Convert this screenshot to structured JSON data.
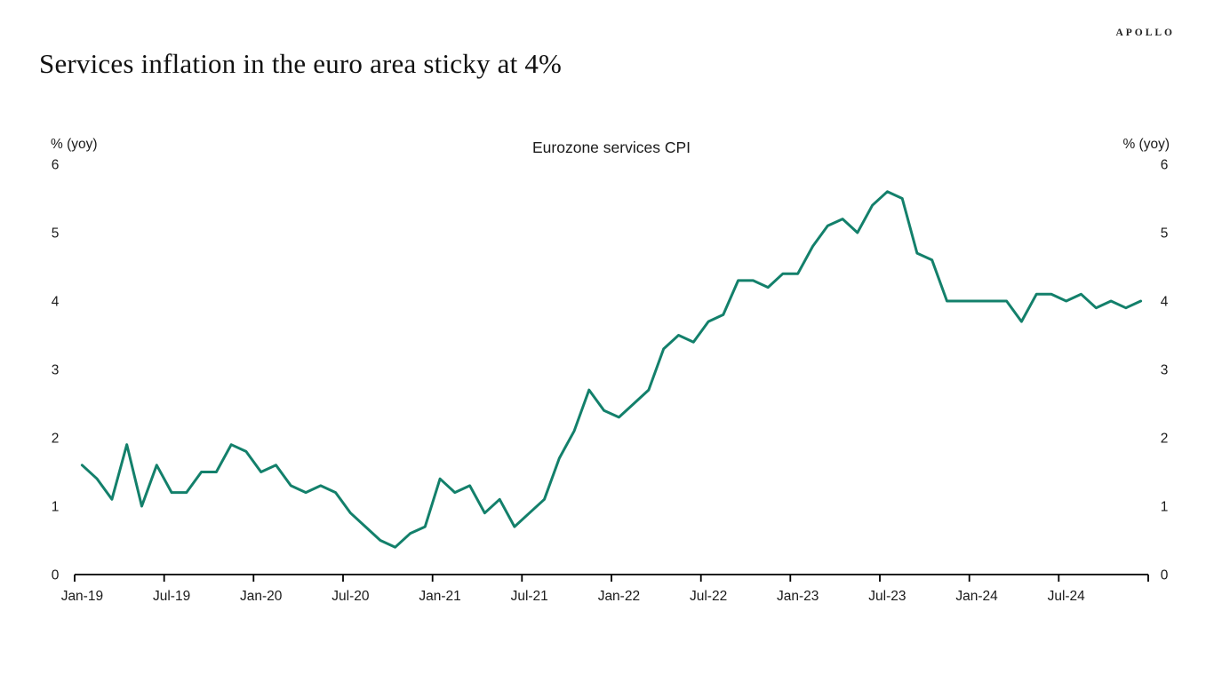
{
  "header": {
    "brand": "APOLLO",
    "title": "Services inflation in the euro area sticky at 4%"
  },
  "chart_data": {
    "type": "line",
    "title": "Eurozone services CPI",
    "y_axis_label_left": "% (yoy)",
    "y_axis_label_right": "% (yoy)",
    "ylim": [
      0,
      6
    ],
    "yticks": [
      0,
      1,
      2,
      3,
      4,
      5,
      6
    ],
    "grid": false,
    "legend_position": "none",
    "line_color": "#13806b",
    "axis_color": "#000000",
    "x_tick_labels": [
      "Jan-19",
      "Jul-19",
      "Jan-20",
      "Jul-20",
      "Jan-21",
      "Jul-21",
      "Jan-22",
      "Jul-22",
      "Jan-23",
      "Jul-23",
      "Jan-24",
      "Jul-24"
    ],
    "x": [
      "Jan-19",
      "Feb-19",
      "Mar-19",
      "Apr-19",
      "May-19",
      "Jun-19",
      "Jul-19",
      "Aug-19",
      "Sep-19",
      "Oct-19",
      "Nov-19",
      "Dec-19",
      "Jan-20",
      "Feb-20",
      "Mar-20",
      "Apr-20",
      "May-20",
      "Jun-20",
      "Jul-20",
      "Aug-20",
      "Sep-20",
      "Oct-20",
      "Nov-20",
      "Dec-20",
      "Jan-21",
      "Feb-21",
      "Mar-21",
      "Apr-21",
      "May-21",
      "Jun-21",
      "Jul-21",
      "Aug-21",
      "Sep-21",
      "Oct-21",
      "Nov-21",
      "Dec-21",
      "Jan-22",
      "Feb-22",
      "Mar-22",
      "Apr-22",
      "May-22",
      "Jun-22",
      "Jul-22",
      "Aug-22",
      "Sep-22",
      "Oct-22",
      "Nov-22",
      "Dec-22",
      "Jan-23",
      "Feb-23",
      "Mar-23",
      "Apr-23",
      "May-23",
      "Jun-23",
      "Jul-23",
      "Aug-23",
      "Sep-23",
      "Oct-23",
      "Nov-23",
      "Dec-23",
      "Jan-24",
      "Feb-24",
      "Mar-24",
      "Apr-24",
      "May-24",
      "Jun-24",
      "Jul-24",
      "Aug-24",
      "Sep-24",
      "Oct-24",
      "Nov-24",
      "Dec-24"
    ],
    "series": [
      {
        "name": "Eurozone services CPI",
        "values": [
          1.6,
          1.4,
          1.1,
          1.9,
          1.0,
          1.6,
          1.2,
          1.2,
          1.5,
          1.5,
          1.9,
          1.8,
          1.5,
          1.6,
          1.3,
          1.2,
          1.3,
          1.2,
          0.9,
          0.7,
          0.5,
          0.4,
          0.6,
          0.7,
          1.4,
          1.2,
          1.3,
          0.9,
          1.1,
          0.7,
          0.9,
          1.1,
          1.7,
          2.1,
          2.7,
          2.4,
          2.3,
          2.5,
          2.7,
          3.3,
          3.5,
          3.4,
          3.7,
          3.8,
          4.3,
          4.3,
          4.2,
          4.4,
          4.4,
          4.8,
          5.1,
          5.2,
          5.0,
          5.4,
          5.6,
          5.5,
          4.7,
          4.6,
          4.0,
          4.0,
          4.0,
          4.0,
          4.0,
          3.7,
          4.1,
          4.1,
          4.0,
          4.1,
          3.9,
          4.0,
          3.9,
          4.0
        ]
      }
    ]
  }
}
